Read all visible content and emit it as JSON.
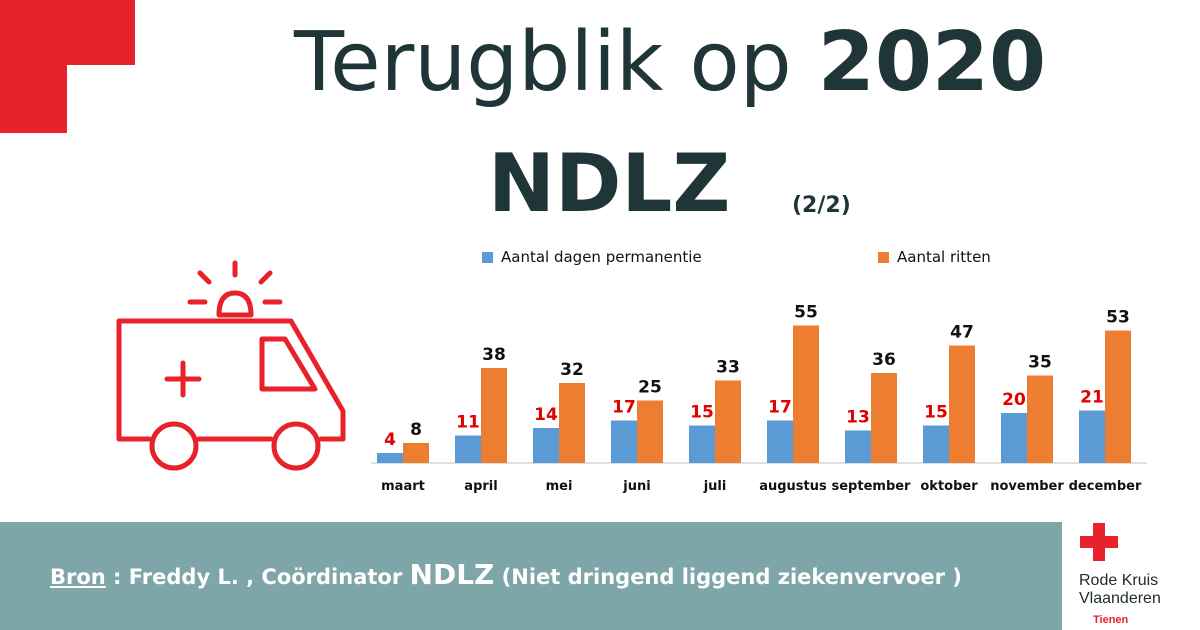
{
  "header": {
    "title_prefix": "Terugblik op",
    "title_year": "2020",
    "subtitle": "NDLZ",
    "part": "(2/2)"
  },
  "footer": {
    "source_label": "Bron",
    "separator": " : ",
    "author": "Freddy L. , Coördinator ",
    "org_abbr": "NDLZ",
    "org_full": " (Niet dringend liggend ziekenvervoer )"
  },
  "logo": {
    "line1": "Rode Kruis",
    "line2": "Vlaanderen",
    "city": "Tienen"
  },
  "icons": {
    "ambulance": "ambulance-icon",
    "logo_cross": "red-cross-icon"
  },
  "colors": {
    "brand_red": "#e8222a",
    "series_days": "#5b9bd5",
    "series_rides": "#ed7d31",
    "label_days": "#e00000",
    "label_rides": "#111111",
    "footer_bg": "#7ea5a8",
    "title": "#1f3537"
  },
  "chart_data": {
    "type": "bar",
    "categories": [
      "maart",
      "april",
      "mei",
      "juni",
      "juli",
      "augustus",
      "september",
      "oktober",
      "november",
      "december"
    ],
    "series": [
      {
        "name": "Aantal dagen permanentie",
        "values": [
          4,
          11,
          14,
          17,
          15,
          17,
          13,
          15,
          20,
          21
        ]
      },
      {
        "name": "Aantal ritten",
        "values": [
          8,
          38,
          32,
          25,
          33,
          55,
          36,
          47,
          35,
          53
        ]
      }
    ],
    "ylim": [
      0,
      60
    ],
    "grid": false,
    "legend": "top",
    "data_labels": true
  }
}
